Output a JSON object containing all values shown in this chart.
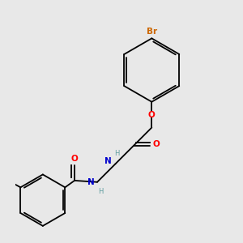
{
  "background_color": "#e8e8e8",
  "bond_color": "#000000",
  "atom_colors": {
    "Br": "#cc6600",
    "O": "#ff0000",
    "N": "#0000cd",
    "H": "#5f9ea0",
    "C": "#000000"
  },
  "lw": 1.3,
  "fs": 7.5
}
